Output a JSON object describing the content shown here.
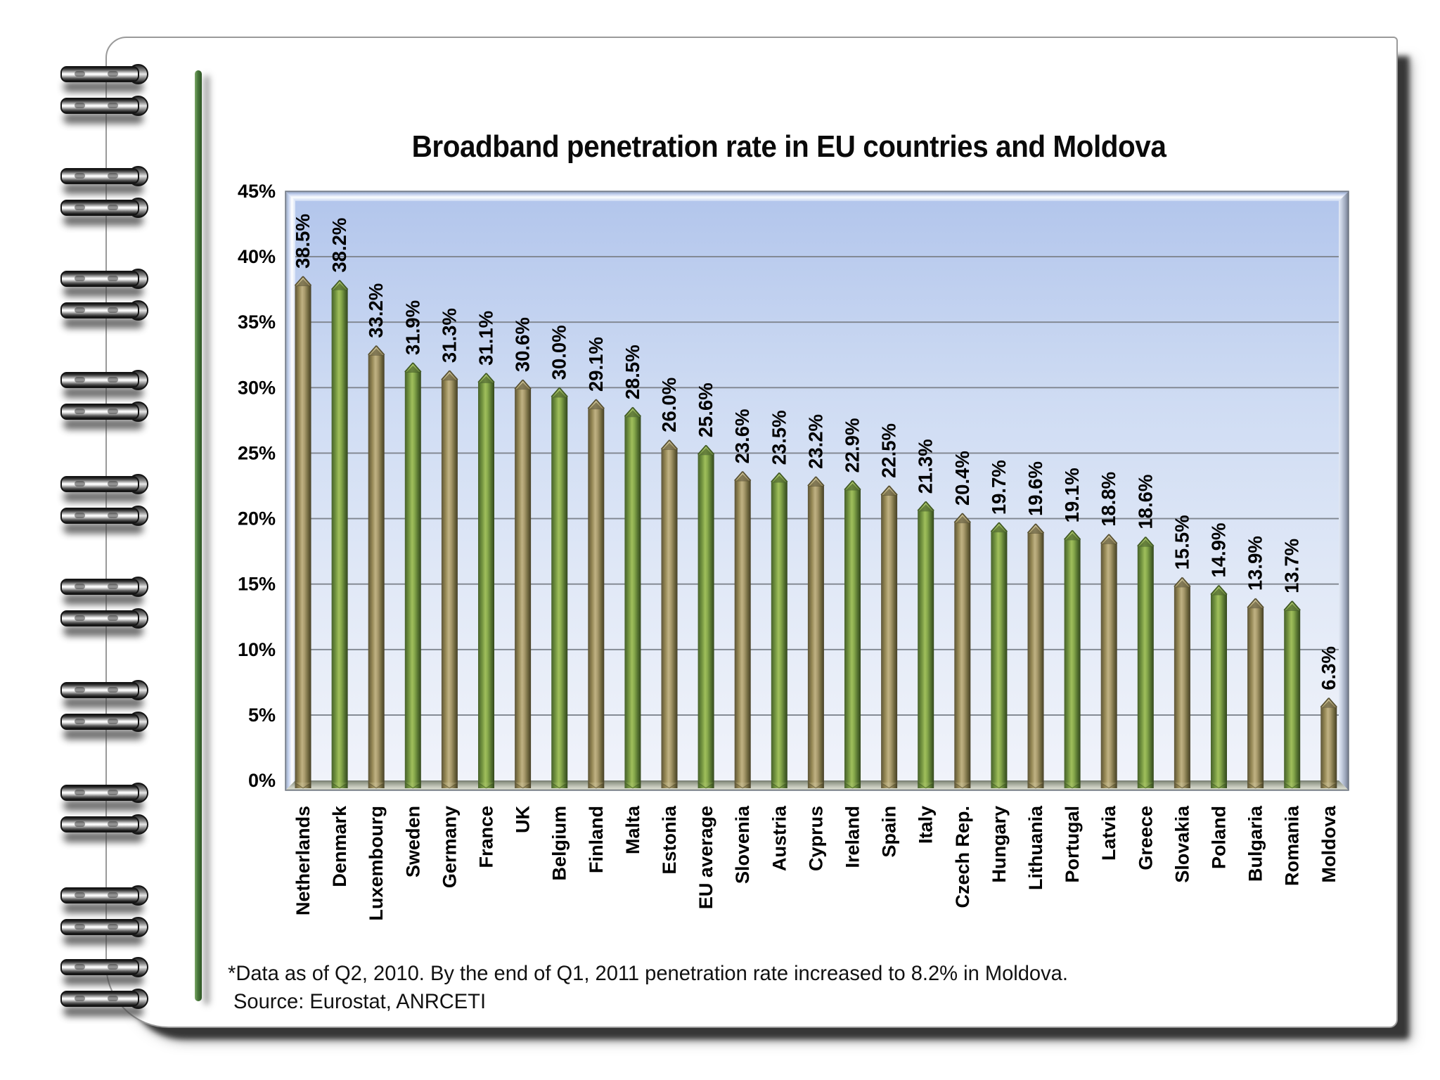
{
  "notebook": {
    "footnote": "*Data as of Q2, 2010. By the end of Q1, 2011 penetration rate increased to 8.2% in Moldova.",
    "source": "Source: Eurostat, ANRCETI"
  },
  "chart_data": {
    "type": "bar",
    "title": "Broadband penetration rate in EU countries and Moldova",
    "categories": [
      "Netherlands",
      "Denmark",
      "Luxembourg",
      "Sweden",
      "Germany",
      "France",
      "UK",
      "Belgium",
      "Finland",
      "Malta",
      "Estonia",
      "EU average",
      "Slovenia",
      "Austria",
      "Cyprus",
      "Ireland",
      "Spain",
      "Italy",
      "Czech Rep.",
      "Hungary",
      "Lithuania",
      "Portugal",
      "Latvia",
      "Greece",
      "Slovakia",
      "Poland",
      "Bulgaria",
      "Romania",
      "Moldova"
    ],
    "values": [
      38.5,
      38.2,
      33.2,
      31.9,
      31.3,
      31.1,
      30.6,
      30.0,
      29.1,
      28.5,
      26.0,
      25.6,
      23.6,
      23.5,
      23.2,
      22.9,
      22.5,
      21.3,
      20.4,
      19.7,
      19.6,
      19.1,
      18.8,
      18.6,
      15.5,
      14.9,
      13.9,
      13.7,
      6.3
    ],
    "value_labels": [
      "38.5%",
      "38.2%",
      "33.2%",
      "31.9%",
      "31.3%",
      "31.1%",
      "30.6%",
      "30.0%",
      "29.1%",
      "28.5%",
      "26.0%",
      "25.6%",
      "23.6%",
      "23.5%",
      "23.2%",
      "22.9%",
      "22.5%",
      "21.3%",
      "20.4%",
      "19.7%",
      "19.6%",
      "19.1%",
      "18.8%",
      "18.6%",
      "15.5%",
      "14.9%",
      "13.9%",
      "13.7%",
      "6.3%"
    ],
    "ylim": [
      0,
      45
    ],
    "ytick_step": 5,
    "ytick_labels": [
      "0%",
      "5%",
      "10%",
      "15%",
      "20%",
      "25%",
      "30%",
      "35%",
      "40%",
      "45%"
    ],
    "grid": true,
    "legend": false,
    "xlabel": "",
    "ylabel": "",
    "colors": {
      "bar_tan": "#9e9166",
      "bar_green": "#7d9c44",
      "plot_bg_top": "#b3c6ec",
      "plot_bg_bottom": "#f0f3fa"
    }
  }
}
